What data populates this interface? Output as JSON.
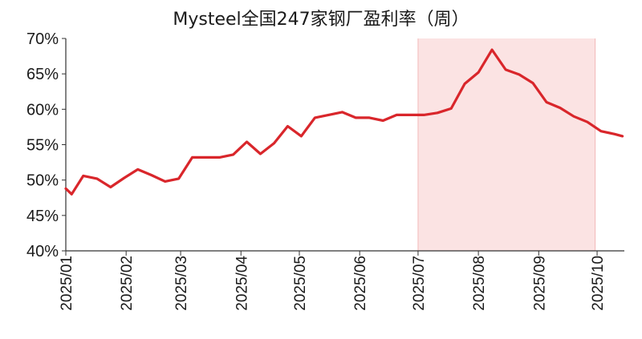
{
  "chart_data": {
    "type": "line",
    "title": "Mysteel全国247家钢厂盈利率（周）",
    "xlabel": "",
    "ylabel": "",
    "x_tick_labels": [
      "2025/01",
      "2025/02",
      "2025/03",
      "2025/04",
      "2025/05",
      "2025/06",
      "2025/07",
      "2025/08",
      "2025/09",
      "2025/10"
    ],
    "y_tick_labels": [
      "40%",
      "45%",
      "50%",
      "55%",
      "60%",
      "65%",
      "70%"
    ],
    "ylim": [
      40,
      70
    ],
    "y_unit": "%",
    "grid": false,
    "legend": "none",
    "series_color": "#d9262b",
    "highlight_color": "#fbe3e3",
    "highlight_range": [
      "2025-07-01",
      "2025-09-30"
    ],
    "series": [
      {
        "x": [
          "2025-01-01",
          "2025-01-04",
          "2025-01-10",
          "2025-01-17",
          "2025-01-24",
          "2025-01-31",
          "2025-02-07",
          "2025-02-14",
          "2025-02-21",
          "2025-02-28",
          "2025-03-07",
          "2025-03-14",
          "2025-03-21",
          "2025-03-28",
          "2025-04-04",
          "2025-04-11",
          "2025-04-18",
          "2025-04-25",
          "2025-05-02",
          "2025-05-09",
          "2025-05-16",
          "2025-05-23",
          "2025-05-30",
          "2025-06-06",
          "2025-06-13",
          "2025-06-20",
          "2025-06-27",
          "2025-07-04",
          "2025-07-11",
          "2025-07-18",
          "2025-07-25",
          "2025-08-01",
          "2025-08-08",
          "2025-08-15",
          "2025-08-22",
          "2025-08-29",
          "2025-09-05",
          "2025-09-12",
          "2025-09-19",
          "2025-09-26",
          "2025-10-03",
          "2025-10-10",
          "2025-10-14"
        ],
        "values": [
          48.8,
          48.0,
          50.6,
          50.2,
          49.0,
          50.3,
          51.5,
          50.7,
          49.8,
          50.2,
          53.2,
          53.2,
          53.2,
          53.6,
          55.4,
          53.7,
          55.2,
          57.6,
          56.2,
          58.8,
          59.2,
          59.6,
          58.8,
          58.8,
          58.4,
          59.2,
          59.2,
          59.2,
          59.5,
          60.1,
          63.6,
          65.2,
          68.4,
          65.6,
          64.9,
          63.7,
          61.0,
          60.2,
          59.0,
          58.2,
          56.9,
          56.5,
          56.2
        ]
      }
    ]
  }
}
